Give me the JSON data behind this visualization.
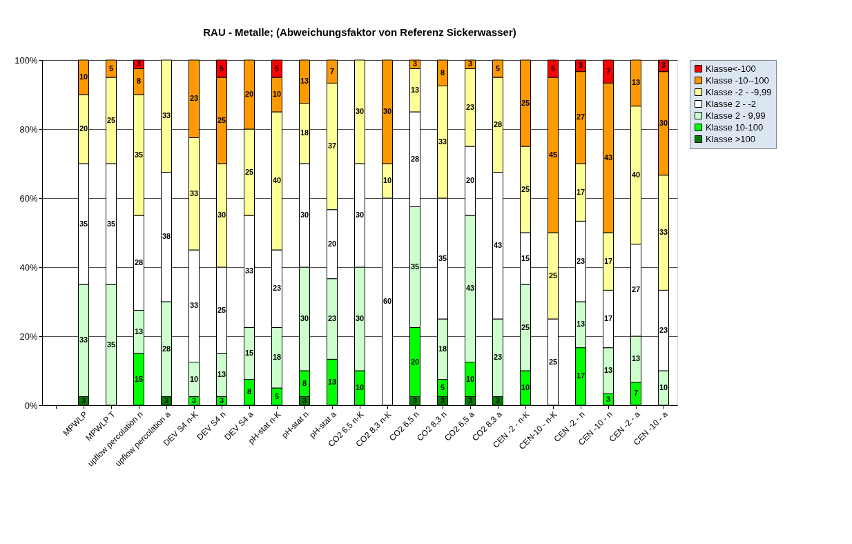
{
  "chart_data": {
    "type": "bar",
    "stacked": true,
    "title": "RAU - Metalle;  (Abweichungsfaktor von Referenz Sickerwasser)",
    "categories": [
      null,
      "MPWLP",
      "MPWLP T",
      "upflow percolation n",
      "upflow percolation a",
      "DEV S4 n-K",
      "DEV S4 n",
      "DEV S4 a",
      "pH-stat n-K",
      "pH-stat n",
      "pH-stat a",
      "CO2  6,5 n-K",
      "CO2 8,3 n-K",
      "CO2 6,5 n",
      "CO2 8,3 n",
      "CO2 6,5 a",
      "CO2 8,3 a",
      "CEN -2 - n-K",
      "CEN-10 - n-K",
      "CEN -2 - n",
      "CEN -10 - n",
      "CEN -2 - a",
      "CEN -10 - a"
    ],
    "series": [
      {
        "name": "Klasse >100",
        "color": "#008000",
        "values": [
          0,
          2.5,
          0,
          0,
          2.5,
          0,
          0,
          0,
          0,
          2.5,
          0,
          0,
          0,
          2.5,
          2.5,
          2.5,
          2.5,
          0,
          0,
          0,
          0,
          0,
          0
        ],
        "value_labels": [
          null,
          "3",
          null,
          null,
          "3",
          null,
          null,
          null,
          null,
          "3",
          null,
          null,
          null,
          "3",
          "3",
          "3",
          "3",
          null,
          null,
          null,
          null,
          null,
          null
        ]
      },
      {
        "name": "Klasse 10-100",
        "color": "#00ff00",
        "values": [
          0,
          0,
          0,
          15,
          0,
          2.5,
          2.5,
          7.5,
          5,
          7.5,
          13.33,
          10,
          0,
          20,
          5,
          10,
          0,
          10,
          0,
          16.67,
          3.33,
          6.67,
          0
        ],
        "value_labels": [
          null,
          null,
          null,
          "15",
          null,
          "3",
          "3",
          "8",
          "5",
          "8",
          "13",
          "10",
          null,
          "20",
          "5",
          "10",
          null,
          "10",
          null,
          "17",
          "3",
          "7",
          null
        ]
      },
      {
        "name": "Klasse 2 - 9,99",
        "color": "#ccffcc",
        "values": [
          0,
          32.5,
          35,
          12.5,
          27.5,
          10,
          12.5,
          15,
          17.5,
          30,
          23.33,
          30,
          0,
          35,
          17.5,
          42.5,
          22.5,
          25,
          0,
          13.33,
          13.33,
          13.33,
          10
        ],
        "value_labels": [
          null,
          "33",
          "35",
          "13",
          "28",
          "10",
          "13",
          "15",
          "18",
          "30",
          "23",
          "30",
          null,
          "35",
          "18",
          "43",
          "23",
          "25",
          null,
          "13",
          "13",
          "13",
          "10"
        ]
      },
      {
        "name": "Klasse 2 - -2",
        "color": "#ffffff",
        "values": [
          0,
          35,
          35,
          27.5,
          37.5,
          32.5,
          25,
          32.5,
          22.5,
          30,
          20,
          30,
          60,
          27.5,
          35,
          20,
          42.5,
          15,
          25,
          23.33,
          16.67,
          26.67,
          23.33
        ],
        "value_labels": [
          null,
          "35",
          "35",
          "28",
          "38",
          "33",
          "25",
          "33",
          "23",
          "30",
          "20",
          "30",
          "60",
          "28",
          "35",
          "20",
          "43",
          "15",
          "25",
          "23",
          "17",
          "27",
          "23"
        ]
      },
      {
        "name": "Klasse -2 - -9,99",
        "color": "#ffff99",
        "values": [
          0,
          20,
          25,
          35,
          32.5,
          32.5,
          30,
          25,
          40,
          17.5,
          36.67,
          30,
          10,
          12.5,
          32.5,
          22.5,
          27.5,
          25,
          25,
          16.67,
          16.67,
          40,
          33.33
        ],
        "value_labels": [
          null,
          "20",
          "25",
          "35",
          "33",
          "33",
          "30",
          "25",
          "40",
          "18",
          "37",
          "30",
          "10",
          "13",
          "33",
          "23",
          "28",
          "25",
          "25",
          "17",
          "17",
          "40",
          "33"
        ]
      },
      {
        "name": "Klasse -10--100",
        "color": "#ff9900",
        "values": [
          0,
          10,
          5,
          7.5,
          0,
          22.5,
          25,
          20,
          10,
          12.5,
          6.67,
          0,
          30,
          2.5,
          7.5,
          2.5,
          5,
          25,
          45,
          26.67,
          43.33,
          13.33,
          30
        ],
        "value_labels": [
          null,
          "10",
          "5",
          "8",
          null,
          "23",
          "25",
          "20",
          "10",
          "13",
          "7",
          null,
          "30",
          "3",
          "8",
          "3",
          "5",
          "25",
          "45",
          "27",
          "43",
          "13",
          "30"
        ]
      },
      {
        "name": "Klasse<-100",
        "color": "#ff0000",
        "values": [
          0,
          0,
          0,
          2.5,
          0,
          0,
          5,
          0,
          5,
          0,
          0,
          0,
          0,
          0,
          0,
          0,
          0,
          0,
          5,
          3.33,
          6.67,
          0,
          3.33
        ],
        "value_labels": [
          null,
          null,
          null,
          "3",
          null,
          null,
          "5",
          null,
          "5",
          null,
          null,
          null,
          null,
          null,
          null,
          null,
          null,
          null,
          "5",
          "3",
          "7",
          null,
          "3"
        ]
      }
    ],
    "ylim": [
      0,
      100
    ],
    "yticks": [
      {
        "value": 0,
        "label": "0%"
      },
      {
        "value": 20,
        "label": "20%"
      },
      {
        "value": 40,
        "label": "40%"
      },
      {
        "value": 60,
        "label": "60%"
      },
      {
        "value": 80,
        "label": "80%"
      },
      {
        "value": 100,
        "label": "100%"
      }
    ],
    "grid": "y",
    "legend": "right"
  }
}
